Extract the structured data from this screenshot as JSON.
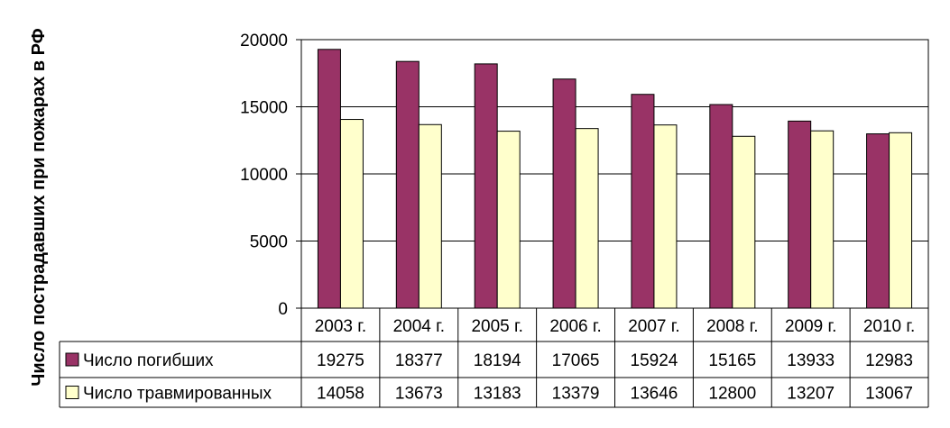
{
  "chart_data": {
    "type": "bar",
    "title": "",
    "xlabel": "",
    "ylabel": "Число пострадавших при пожарах в РФ",
    "ylim": [
      0,
      20000
    ],
    "yticks": [
      0,
      5000,
      10000,
      15000,
      20000
    ],
    "grid": true,
    "legend": "data-table",
    "categories": [
      "2003 г.",
      "2004 г.",
      "2005 г.",
      "2006 г.",
      "2007 г.",
      "2008 г.",
      "2009 г.",
      "2010 г."
    ],
    "series": [
      {
        "name": "Число погибших",
        "color": "#993366",
        "values": [
          19275,
          18377,
          18194,
          17065,
          15924,
          15165,
          13933,
          12983
        ]
      },
      {
        "name": "Число травмированных",
        "color": "#ffffcc",
        "values": [
          14058,
          13673,
          13183,
          13379,
          13646,
          12800,
          13207,
          13067
        ]
      }
    ]
  }
}
